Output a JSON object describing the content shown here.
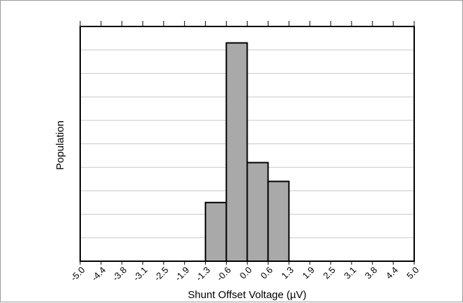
{
  "chart_data": {
    "type": "bar",
    "title": "",
    "xlabel": "Shunt Offset Voltage (µV)",
    "ylabel": "Population",
    "categories": [
      "-5.0",
      "-4.4",
      "-3.8",
      "-3.1",
      "-2.5",
      "-1.9",
      "-1.3",
      "-0.6",
      "0.0",
      "0.6",
      "1.3",
      "1.9",
      "2.5",
      "3.1",
      "3.8",
      "4.4",
      "5.0"
    ],
    "bins": [
      {
        "from": "-1.3",
        "to": "-0.6",
        "value": 2.5
      },
      {
        "from": "-0.6",
        "to": "0.0",
        "value": 9.3
      },
      {
        "from": "0.0",
        "to": "0.6",
        "value": 4.2
      },
      {
        "from": "0.6",
        "to": "1.3",
        "value": 3.4
      }
    ],
    "ylim": [
      0,
      10
    ],
    "y_gridlines": 10,
    "y_tick_labels": "none",
    "grid": true,
    "bar_color": "#a9a9a9",
    "bar_edge_color": "#000000"
  }
}
